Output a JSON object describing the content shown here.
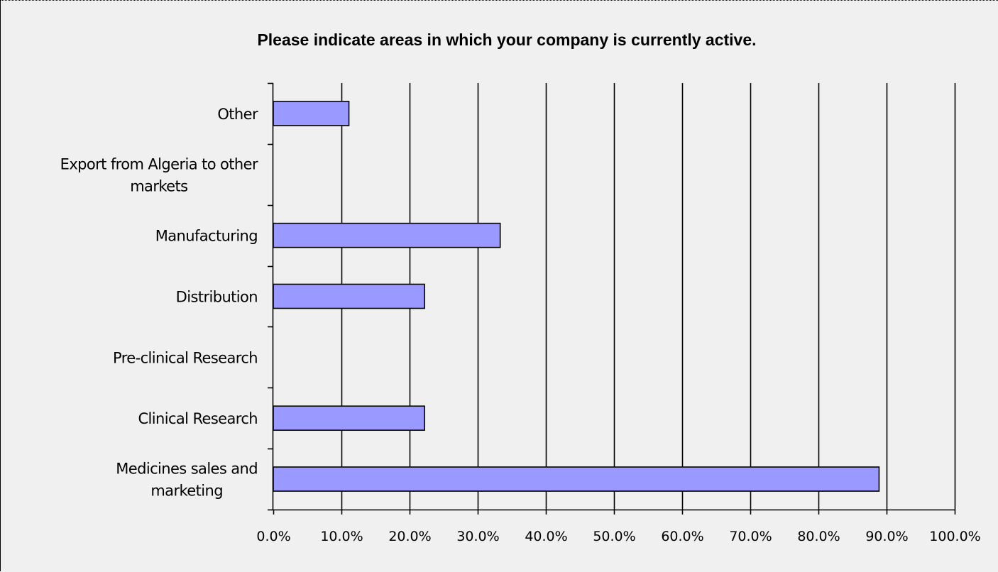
{
  "chart_data": {
    "type": "bar",
    "orientation": "horizontal",
    "title": "Please indicate areas in which your company is currently active.",
    "xlabel": "",
    "ylabel": "",
    "categories": [
      "Other",
      "Export from Algeria to other markets",
      "Manufacturing",
      "Distribution",
      "Pre-clinical Research",
      "Clinical Research",
      "Medicines sales and marketing"
    ],
    "category_label_lines": [
      [
        "Other"
      ],
      [
        "Export from Algeria to other",
        "markets"
      ],
      [
        "Manufacturing"
      ],
      [
        "Distribution"
      ],
      [
        "Pre-clinical Research"
      ],
      [
        "Clinical Research"
      ],
      [
        "Medicines sales and",
        "marketing"
      ]
    ],
    "values": [
      11.1,
      0,
      33.3,
      22.2,
      0,
      22.2,
      88.9
    ],
    "xlim": [
      0,
      100
    ],
    "xticks": [
      0,
      10,
      20,
      30,
      40,
      50,
      60,
      70,
      80,
      90,
      100
    ],
    "xtick_labels": [
      "0.0%",
      "10.0%",
      "20.0%",
      "30.0%",
      "40.0%",
      "50.0%",
      "60.0%",
      "70.0%",
      "80.0%",
      "90.0%",
      "100.0%"
    ],
    "grid": "vertical",
    "legend": "none",
    "bar_color": "#9999ff",
    "bar_edge_color": "#000000",
    "background_color": "#f0f0f0"
  }
}
